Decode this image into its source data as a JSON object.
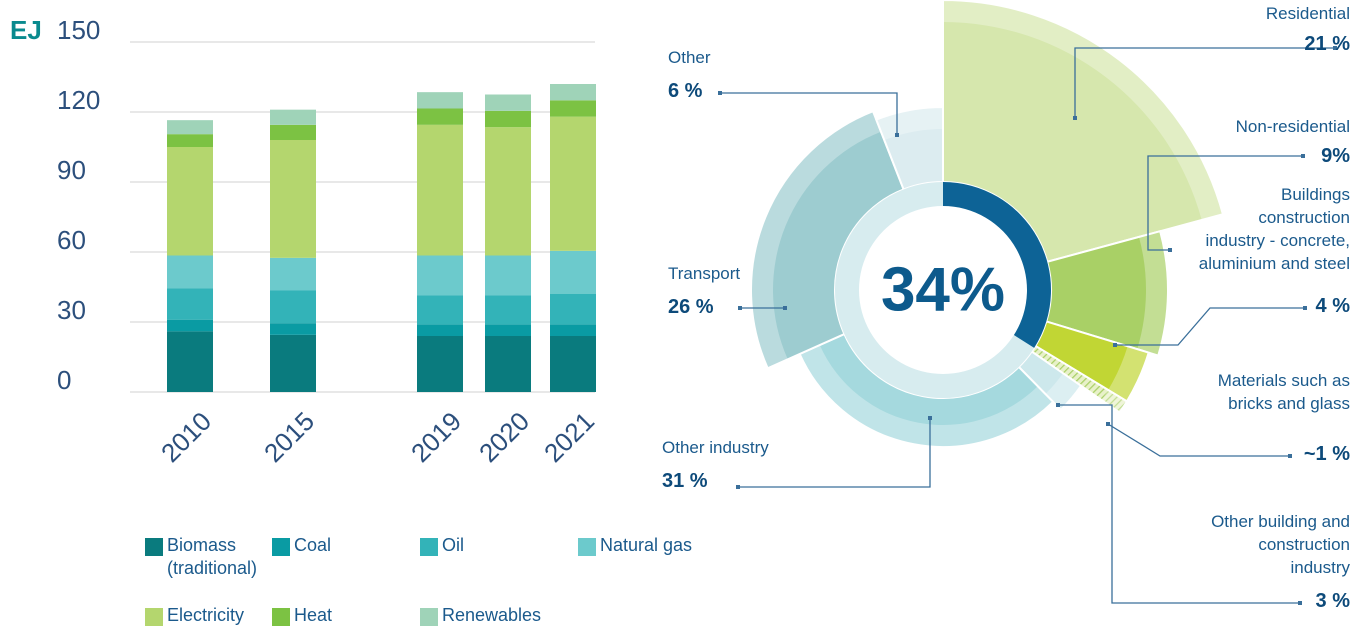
{
  "chart_data": [
    {
      "type": "bar",
      "stacked": true,
      "y_label": "EJ",
      "categories": [
        "2010",
        "2015",
        "2019",
        "2020",
        "2021"
      ],
      "series": [
        {
          "name": "Biomass\n(traditional)",
          "color": "#0a7b7e",
          "values": [
            26,
            24.5,
            24,
            24,
            24
          ]
        },
        {
          "name": "Coal",
          "color": "#0a9ba3",
          "values": [
            5,
            5,
            5,
            5,
            5
          ]
        },
        {
          "name": "Oil",
          "color": "#33b3b8",
          "values": [
            13.5,
            14,
            12.5,
            12.5,
            13
          ]
        },
        {
          "name": "Natural gas",
          "color": "#6ccacc",
          "values": [
            14,
            14,
            17,
            17,
            18.5
          ]
        },
        {
          "name": "Electricity",
          "color": "#b4d66e",
          "values": [
            46.5,
            50.5,
            56,
            55,
            57.5
          ]
        },
        {
          "name": "Heat",
          "color": "#7cc243",
          "values": [
            5.5,
            6.5,
            7,
            7,
            7
          ]
        },
        {
          "name": "Renewables",
          "color": "#9fd3b8",
          "values": [
            6,
            6.5,
            7,
            7,
            7
          ]
        }
      ],
      "ylim": [
        0,
        150
      ],
      "yticks": [
        0,
        30,
        60,
        90,
        120,
        150
      ],
      "grid": true
    },
    {
      "type": "donut",
      "categories": [
        "Residential",
        "Non-residential",
        "Buildings\nconstruction\nindustry - concrete,\naluminium and steel",
        "Materials such as\nbricks and glass",
        "Other building and\nconstruction\nindustry",
        "Other industry",
        "Transport",
        "Other"
      ],
      "values": [
        21,
        9,
        4,
        1,
        3,
        31,
        26,
        6
      ],
      "value_labels": [
        "21 %",
        "9%",
        "4 %",
        "~1 %",
        "3 %",
        "31 %",
        "26 %",
        "6 %"
      ],
      "colors": [
        "#d6e7ad",
        "#a9d066",
        "#c1d634",
        "#d6e7ad",
        "#cde8ec",
        "#a5d9de",
        "#9dccd0",
        "#dcecf0"
      ],
      "center_value": 34,
      "center_label": "34%",
      "center_color": "#0d6396"
    }
  ]
}
